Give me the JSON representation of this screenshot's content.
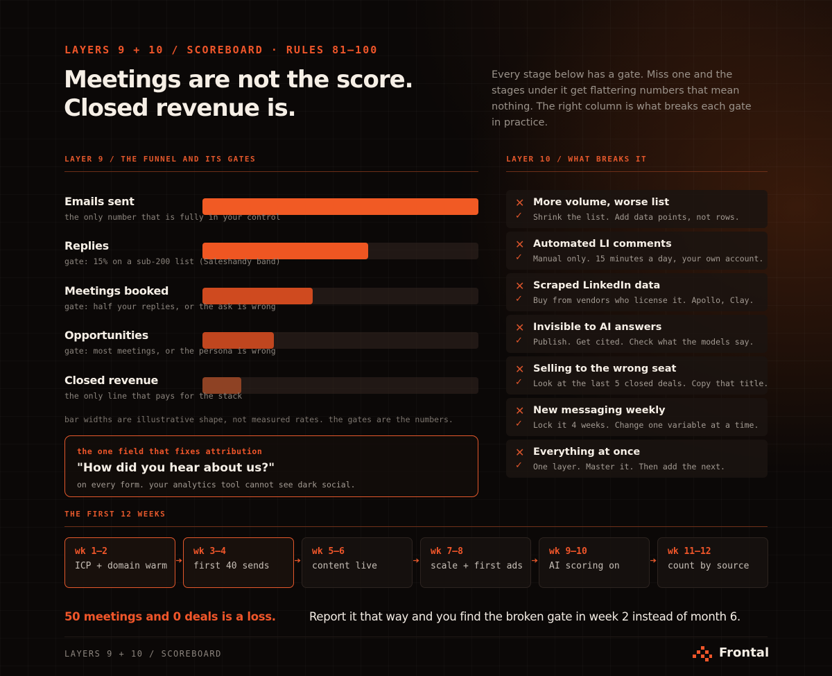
{
  "header": {
    "eyebrow": "LAYERS 9 + 10 / SCOREBOARD · RULES 81–100",
    "headline_line1": "Meetings are not the score.",
    "headline_line2": "Closed revenue is.",
    "intro": "Every stage below has a gate. Miss one and the stages under it get flattering numbers that mean nothing. The right column is what breaks each gate in practice."
  },
  "funnel": {
    "label": "LAYER 9 / THE FUNNEL AND ITS GATES",
    "stages": [
      {
        "title": "Emails sent",
        "sub": "the only number that is fully in your control",
        "fill": 1.0,
        "color": "#f15a24"
      },
      {
        "title": "Replies",
        "sub": "gate: 15% on a sub-200 list (Saleshandy band)",
        "fill": 0.6,
        "color": "#ef5622"
      },
      {
        "title": "Meetings booked",
        "sub": "gate: half your replies, or the ask is wrong",
        "fill": 0.4,
        "color": "#cf4a1f"
      },
      {
        "title": "Opportunities",
        "sub": "gate: most meetings, or the persona is wrong",
        "fill": 0.26,
        "color": "#c0461f"
      },
      {
        "title": "Closed revenue",
        "sub": "the only line that pays for the stack",
        "fill": 0.14,
        "color": "#8e4224"
      }
    ],
    "note": "bar widths are illustrative shape, not measured rates. the gates are the numbers."
  },
  "callout": {
    "tag": "the one field that fixes attribution",
    "question": "\"How did you hear about us?\"",
    "sub": "on every form. your analytics tool cannot see dark social."
  },
  "breaks": {
    "label": "LAYER 10 / WHAT BREAKS IT",
    "items": [
      {
        "title": "More volume, worse list",
        "fix": "Shrink the list. Add data points, not rows."
      },
      {
        "title": "Automated LI comments",
        "fix": "Manual only. 15 minutes a day, your own account."
      },
      {
        "title": "Scraped LinkedIn data",
        "fix": "Buy from vendors who license it. Apollo, Clay."
      },
      {
        "title": "Invisible to AI answers",
        "fix": "Publish. Get cited. Check what the models say."
      },
      {
        "title": "Selling to the wrong seat",
        "fix": "Look at the last 5 closed deals. Copy that title."
      },
      {
        "title": "New messaging weekly",
        "fix": "Lock it 4 weeks. Change one variable at a time."
      },
      {
        "title": "Everything at once",
        "fix": "One layer. Master it. Then add the next."
      }
    ],
    "x_glyph": "✕",
    "check_glyph": "✓"
  },
  "timeline": {
    "label": "THE FIRST 12 WEEKS",
    "weeks": [
      {
        "label": "wk 1–2",
        "desc": "ICP + domain warm",
        "active": true
      },
      {
        "label": "wk 3–4",
        "desc": "first 40 sends",
        "active": true
      },
      {
        "label": "wk 5–6",
        "desc": "content live",
        "active": false
      },
      {
        "label": "wk 7–8",
        "desc": "scale + first ads",
        "active": false
      },
      {
        "label": "wk 9–10",
        "desc": "AI scoring on",
        "active": false
      },
      {
        "label": "wk 11–12",
        "desc": "count by source",
        "active": false
      }
    ]
  },
  "bottom": {
    "loss": "50 meetings and 0 deals is a loss.",
    "report": "Report it that way and you find the broken gate in week 2 instead of month 6."
  },
  "footer": {
    "label": "LAYERS 9 + 10 / SCOREBOARD",
    "brand": "Frontal",
    "logo_icon": "frontal-logo-icon"
  },
  "colors": {
    "accent": "#f0562a",
    "background": "#0b0807"
  }
}
